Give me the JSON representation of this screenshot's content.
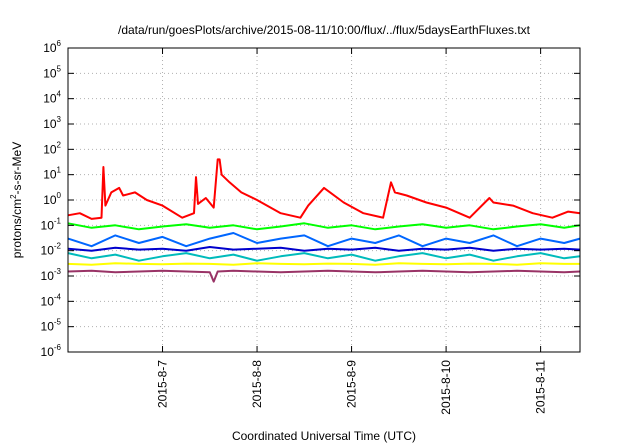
{
  "chart_data": {
    "type": "line",
    "title": "/data/run/goesPlots/archive/2015-08-11/10:00/flux/../flux/5daysEarthFluxes.txt",
    "xlabel": "Coordinated Universal Time (UTC)",
    "ylabel": {
      "pre": "protons/cm",
      "sup": "2",
      "post": "-s-sr-MeV"
    },
    "y_scale": "log",
    "ylim": [
      1e-06,
      1000000.0
    ],
    "y_ticks": [
      {
        "value": 1e-06,
        "base": "10",
        "exp": "-6"
      },
      {
        "value": 1e-05,
        "base": "10",
        "exp": "-5"
      },
      {
        "value": 0.0001,
        "base": "10",
        "exp": "-4"
      },
      {
        "value": 0.001,
        "base": "10",
        "exp": "-3"
      },
      {
        "value": 0.01,
        "base": "10",
        "exp": "-2"
      },
      {
        "value": 0.1,
        "base": "10",
        "exp": "-1"
      },
      {
        "value": 1.0,
        "base": "10",
        "exp": "0"
      },
      {
        "value": 10.0,
        "base": "10",
        "exp": "1"
      },
      {
        "value": 100.0,
        "base": "10",
        "exp": "2"
      },
      {
        "value": 1000.0,
        "base": "10",
        "exp": "3"
      },
      {
        "value": 10000.0,
        "base": "10",
        "exp": "4"
      },
      {
        "value": 100000.0,
        "base": "10",
        "exp": "5"
      },
      {
        "value": 1000000.0,
        "base": "10",
        "exp": "6"
      }
    ],
    "xlim": [
      "2015-08-06 00:00",
      "2015-08-11 10:00"
    ],
    "x_ticks": [
      {
        "value": "2015-08-07 00:00",
        "label": "2015-8-7"
      },
      {
        "value": "2015-08-08 00:00",
        "label": "2015-8-8"
      },
      {
        "value": "2015-08-09 00:00",
        "label": "2015-8-9"
      },
      {
        "value": "2015-08-10 00:00",
        "label": "2015-8-10"
      },
      {
        "value": "2015-08-11 00:00",
        "label": "2015-8-11"
      }
    ],
    "grid": true,
    "series": [
      {
        "color": "#ff0000",
        "x": [
          "2015-08-06 00:00",
          "2015-08-06 03:00",
          "2015-08-06 06:00",
          "2015-08-06 08:30",
          "2015-08-06 09:00",
          "2015-08-06 09:30",
          "2015-08-06 11:00",
          "2015-08-06 13:00",
          "2015-08-06 14:00",
          "2015-08-06 17:00",
          "2015-08-06 20:00",
          "2015-08-07 00:00",
          "2015-08-07 05:00",
          "2015-08-07 08:00",
          "2015-08-07 08:30",
          "2015-08-07 09:00",
          "2015-08-07 11:00",
          "2015-08-07 13:00",
          "2015-08-07 14:00",
          "2015-08-07 14:30",
          "2015-08-07 15:00",
          "2015-08-07 17:00",
          "2015-08-07 20:00",
          "2015-08-08 00:00",
          "2015-08-08 06:00",
          "2015-08-08 11:00",
          "2015-08-08 13:00",
          "2015-08-08 17:00",
          "2015-08-08 22:00",
          "2015-08-09 03:00",
          "2015-08-09 08:00",
          "2015-08-09 10:00",
          "2015-08-09 11:00",
          "2015-08-09 14:00",
          "2015-08-09 19:00",
          "2015-08-10 00:00",
          "2015-08-10 06:00",
          "2015-08-10 11:00",
          "2015-08-10 12:00",
          "2015-08-10 17:00",
          "2015-08-10 22:00",
          "2015-08-11 03:00",
          "2015-08-11 07:00",
          "2015-08-11 10:00"
        ],
        "y": [
          0.25,
          0.3,
          0.18,
          0.2,
          20,
          0.6,
          2,
          3,
          1.5,
          2,
          1,
          0.6,
          0.2,
          0.3,
          8,
          0.7,
          1.2,
          0.5,
          40,
          40,
          10,
          5,
          2,
          1,
          0.3,
          0.2,
          0.6,
          3,
          0.8,
          0.3,
          0.2,
          5,
          2,
          1.5,
          0.8,
          0.5,
          0.2,
          1.2,
          0.8,
          0.6,
          0.3,
          0.2,
          0.35,
          0.3
        ]
      },
      {
        "color": "#00ff00",
        "x": [
          "2015-08-06 00:00",
          "2015-08-06 06:00",
          "2015-08-06 12:00",
          "2015-08-06 18:00",
          "2015-08-07 00:00",
          "2015-08-07 06:00",
          "2015-08-07 12:00",
          "2015-08-07 18:00",
          "2015-08-08 00:00",
          "2015-08-08 06:00",
          "2015-08-08 12:00",
          "2015-08-08 18:00",
          "2015-08-09 00:00",
          "2015-08-09 06:00",
          "2015-08-09 12:00",
          "2015-08-09 18:00",
          "2015-08-10 00:00",
          "2015-08-10 06:00",
          "2015-08-10 12:00",
          "2015-08-10 18:00",
          "2015-08-11 00:00",
          "2015-08-11 06:00",
          "2015-08-11 10:00"
        ],
        "y": [
          0.12,
          0.08,
          0.1,
          0.07,
          0.09,
          0.11,
          0.08,
          0.1,
          0.07,
          0.09,
          0.12,
          0.08,
          0.1,
          0.07,
          0.09,
          0.11,
          0.08,
          0.1,
          0.07,
          0.09,
          0.11,
          0.08,
          0.1
        ]
      },
      {
        "color": "#00bbbb",
        "x": [
          "2015-08-06 00:00",
          "2015-08-06 06:00",
          "2015-08-06 12:00",
          "2015-08-06 18:00",
          "2015-08-07 00:00",
          "2015-08-07 06:00",
          "2015-08-07 12:00",
          "2015-08-07 18:00",
          "2015-08-08 00:00",
          "2015-08-08 06:00",
          "2015-08-08 12:00",
          "2015-08-08 18:00",
          "2015-08-09 00:00",
          "2015-08-09 06:00",
          "2015-08-09 12:00",
          "2015-08-09 18:00",
          "2015-08-10 00:00",
          "2015-08-10 06:00",
          "2015-08-10 12:00",
          "2015-08-10 18:00",
          "2015-08-11 00:00",
          "2015-08-11 06:00",
          "2015-08-11 10:00"
        ],
        "y": [
          0.008,
          0.005,
          0.007,
          0.004,
          0.006,
          0.008,
          0.005,
          0.007,
          0.004,
          0.006,
          0.008,
          0.005,
          0.007,
          0.004,
          0.006,
          0.008,
          0.005,
          0.007,
          0.004,
          0.006,
          0.008,
          0.005,
          0.006
        ]
      },
      {
        "color": "#0066ff",
        "x": [
          "2015-08-06 00:00",
          "2015-08-06 06:00",
          "2015-08-06 12:00",
          "2015-08-06 18:00",
          "2015-08-07 00:00",
          "2015-08-07 06:00",
          "2015-08-07 12:00",
          "2015-08-07 18:00",
          "2015-08-08 00:00",
          "2015-08-08 06:00",
          "2015-08-08 12:00",
          "2015-08-08 18:00",
          "2015-08-09 00:00",
          "2015-08-09 06:00",
          "2015-08-09 12:00",
          "2015-08-09 18:00",
          "2015-08-10 00:00",
          "2015-08-10 06:00",
          "2015-08-10 12:00",
          "2015-08-10 18:00",
          "2015-08-11 00:00",
          "2015-08-11 06:00",
          "2015-08-11 10:00"
        ],
        "y": [
          0.03,
          0.015,
          0.04,
          0.02,
          0.035,
          0.015,
          0.03,
          0.05,
          0.02,
          0.03,
          0.04,
          0.015,
          0.03,
          0.02,
          0.04,
          0.015,
          0.03,
          0.02,
          0.04,
          0.015,
          0.03,
          0.02,
          0.03
        ]
      },
      {
        "color": "#0000cc",
        "x": [
          "2015-08-06 00:00",
          "2015-08-06 06:00",
          "2015-08-06 12:00",
          "2015-08-06 18:00",
          "2015-08-07 00:00",
          "2015-08-07 06:00",
          "2015-08-07 12:00",
          "2015-08-07 18:00",
          "2015-08-08 00:00",
          "2015-08-08 06:00",
          "2015-08-08 12:00",
          "2015-08-08 18:00",
          "2015-08-09 00:00",
          "2015-08-09 06:00",
          "2015-08-09 12:00",
          "2015-08-09 18:00",
          "2015-08-10 00:00",
          "2015-08-10 06:00",
          "2015-08-10 12:00",
          "2015-08-10 18:00",
          "2015-08-11 00:00",
          "2015-08-11 06:00",
          "2015-08-11 10:00"
        ],
        "y": [
          0.012,
          0.01,
          0.013,
          0.011,
          0.012,
          0.01,
          0.014,
          0.011,
          0.012,
          0.013,
          0.01,
          0.012,
          0.011,
          0.013,
          0.01,
          0.012,
          0.011,
          0.013,
          0.01,
          0.012,
          0.011,
          0.012,
          0.011
        ]
      },
      {
        "color": "#ffff00",
        "x": [
          "2015-08-06 00:00",
          "2015-08-06 06:00",
          "2015-08-06 12:00",
          "2015-08-06 18:00",
          "2015-08-07 00:00",
          "2015-08-07 06:00",
          "2015-08-07 12:00",
          "2015-08-07 18:00",
          "2015-08-08 00:00",
          "2015-08-08 06:00",
          "2015-08-08 12:00",
          "2015-08-08 18:00",
          "2015-08-09 00:00",
          "2015-08-09 06:00",
          "2015-08-09 12:00",
          "2015-08-09 18:00",
          "2015-08-10 00:00",
          "2015-08-10 06:00",
          "2015-08-10 12:00",
          "2015-08-10 18:00",
          "2015-08-11 00:00",
          "2015-08-11 06:00",
          "2015-08-11 10:00"
        ],
        "y": [
          0.003,
          0.0028,
          0.0032,
          0.003,
          0.0029,
          0.0031,
          0.003,
          0.0028,
          0.0032,
          0.003,
          0.0029,
          0.0031,
          0.003,
          0.0028,
          0.0032,
          0.003,
          0.0029,
          0.0031,
          0.003,
          0.0028,
          0.0032,
          0.003,
          0.003
        ]
      },
      {
        "color": "#993366",
        "x": [
          "2015-08-06 00:00",
          "2015-08-06 06:00",
          "2015-08-06 12:00",
          "2015-08-06 18:00",
          "2015-08-07 00:00",
          "2015-08-07 06:00",
          "2015-08-07 12:00",
          "2015-08-07 13:00",
          "2015-08-07 14:00",
          "2015-08-07 18:00",
          "2015-08-08 00:00",
          "2015-08-08 06:00",
          "2015-08-08 12:00",
          "2015-08-08 18:00",
          "2015-08-09 00:00",
          "2015-08-09 06:00",
          "2015-08-09 12:00",
          "2015-08-09 18:00",
          "2015-08-10 00:00",
          "2015-08-10 06:00",
          "2015-08-10 12:00",
          "2015-08-10 18:00",
          "2015-08-11 00:00",
          "2015-08-11 06:00",
          "2015-08-11 10:00"
        ],
        "y": [
          0.0015,
          0.0016,
          0.0014,
          0.0015,
          0.0016,
          0.0015,
          0.0014,
          0.0006,
          0.0015,
          0.0016,
          0.0015,
          0.0014,
          0.0015,
          0.0016,
          0.0015,
          0.0014,
          0.0015,
          0.0016,
          0.0015,
          0.0014,
          0.0015,
          0.0016,
          0.0015,
          0.0014,
          0.0015
        ]
      }
    ]
  }
}
